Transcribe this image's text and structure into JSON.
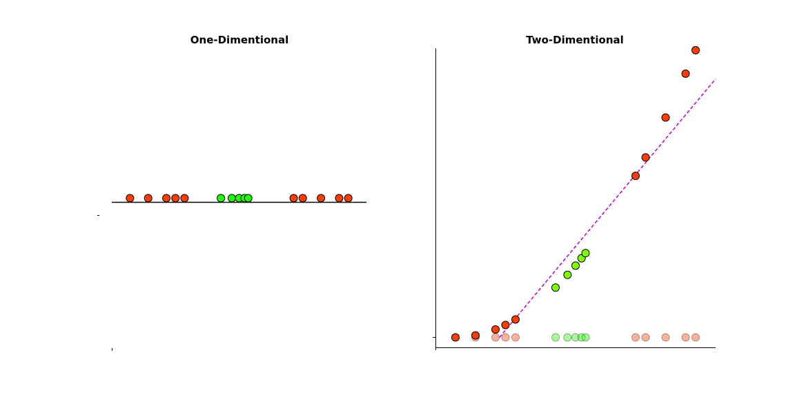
{
  "chart_data": [
    {
      "type": "scatter",
      "title": "One-Dimentional",
      "xlabel": "",
      "ylabel": "",
      "grid": false,
      "xlim": [
        -1,
        13
      ],
      "ylim": [
        -1,
        1
      ],
      "baseline_y": 0,
      "series": [
        {
          "color": "#ff3d00",
          "points": [
            [
              0,
              0
            ],
            [
              1,
              0
            ],
            [
              2,
              0
            ],
            [
              2.5,
              0
            ],
            [
              3,
              0
            ],
            [
              9,
              0
            ],
            [
              9.5,
              0
            ],
            [
              10.5,
              0
            ],
            [
              11.5,
              0
            ],
            [
              12,
              0
            ]
          ]
        },
        {
          "color": "#22ff00",
          "points": [
            [
              5,
              0
            ],
            [
              5.6,
              0
            ],
            [
              6,
              0
            ],
            [
              6.3,
              0
            ],
            [
              6.5,
              0
            ]
          ]
        }
      ]
    },
    {
      "type": "scatter",
      "title": "Two-Dimentional",
      "xlabel": "",
      "ylabel": "",
      "grid": false,
      "xlim": [
        -1,
        13
      ],
      "ylim": [
        -5,
        145
      ],
      "series": [
        {
          "color": "#ff3d00",
          "points": [
            [
              0,
              0
            ],
            [
              1,
              1
            ],
            [
              2,
              4
            ],
            [
              2.5,
              6.25
            ],
            [
              3,
              9
            ],
            [
              9,
              81
            ],
            [
              9.5,
              90.25
            ],
            [
              10.5,
              110.25
            ],
            [
              11.5,
              132.25
            ],
            [
              12,
              144
            ]
          ]
        },
        {
          "color": "#7fff00",
          "points": [
            [
              5,
              25
            ],
            [
              5.6,
              31.36
            ],
            [
              6,
              36
            ],
            [
              6.3,
              39.69
            ],
            [
              6.5,
              42.25
            ]
          ]
        },
        {
          "color": "#ff3d00",
          "faded": true,
          "points": [
            [
              0,
              0
            ],
            [
              1,
              0
            ],
            [
              2,
              0
            ],
            [
              2.5,
              0
            ],
            [
              3,
              0
            ],
            [
              9,
              0
            ],
            [
              9.5,
              0
            ],
            [
              10.5,
              0
            ],
            [
              11.5,
              0
            ],
            [
              12,
              0
            ]
          ]
        },
        {
          "color": "#22ff00",
          "faded": true,
          "points": [
            [
              5,
              0
            ],
            [
              5.6,
              0
            ],
            [
              6,
              0
            ],
            [
              6.3,
              0
            ],
            [
              6.5,
              0
            ]
          ]
        }
      ],
      "separator_line": {
        "color": "#c000c0",
        "style": "dashed",
        "x": [
          2.2,
          13
        ],
        "y": [
          0,
          129.6
        ]
      }
    }
  ]
}
